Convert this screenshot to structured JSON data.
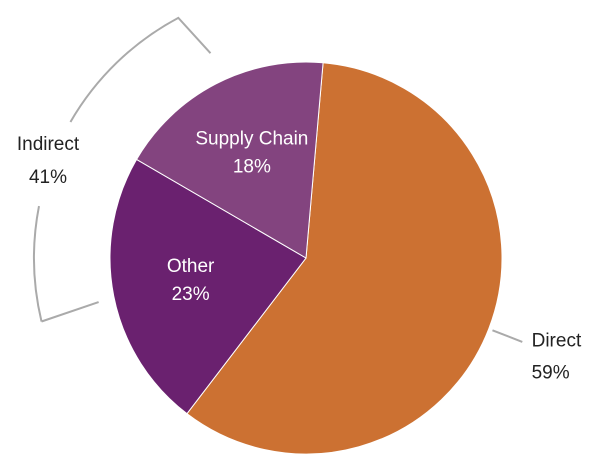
{
  "chart_data": {
    "type": "pie",
    "categories": [
      "Direct",
      "Other",
      "Supply Chain"
    ],
    "values": [
      59,
      23,
      18
    ],
    "value_labels": [
      "59%",
      "23%",
      "18%"
    ],
    "colors": [
      "#cc7132",
      "#6a216f",
      "#83447f"
    ],
    "annotations": [
      {
        "text": "Indirect",
        "value": 41,
        "value_label": "41%"
      }
    ]
  }
}
